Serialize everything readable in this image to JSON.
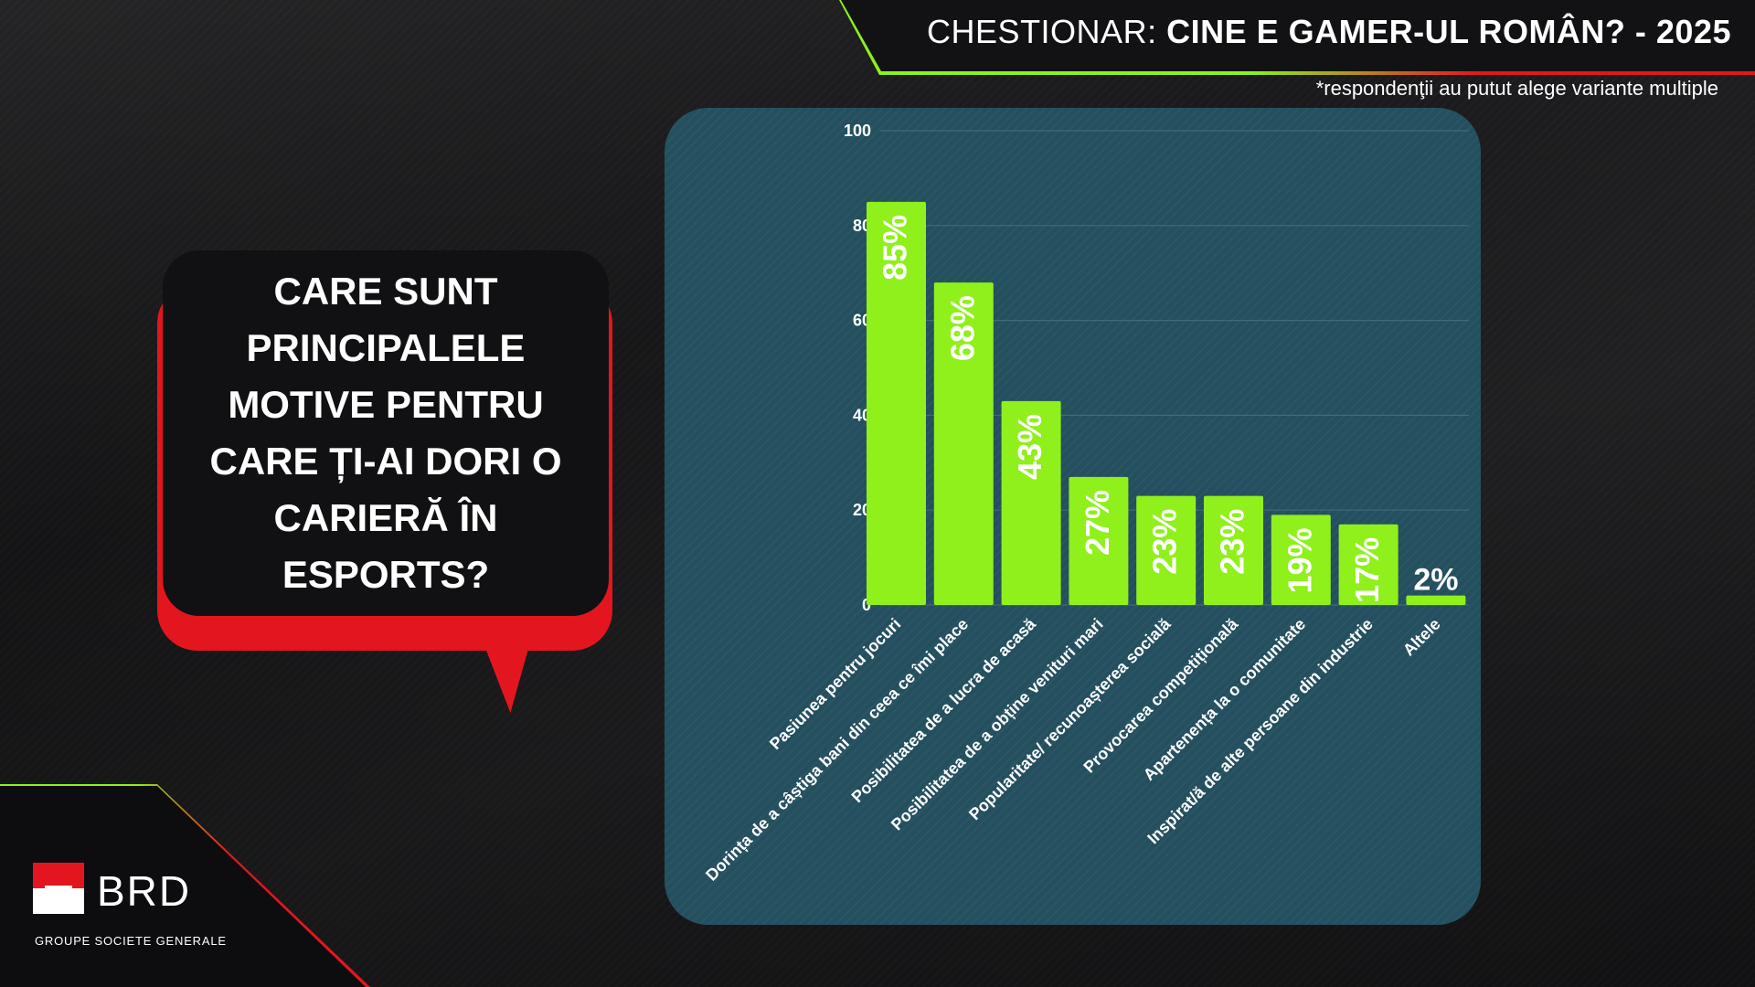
{
  "header": {
    "title_prefix": "CHESTIONAR:",
    "title_main": "CINE E GAMER-UL ROMÂN? - 2025",
    "footnote": "*respondenţii au putut alege variante multiple"
  },
  "question": {
    "text": "CARE SUNT\nPRINCIPALELE\nMOTIVE PENTRU\nCARE ȚI-AI DORI O\nCARIERĂ ÎN\nESPORTS?"
  },
  "brand": {
    "name": "BRD",
    "subtitle": "GROUPE SOCIETE GENERALE"
  },
  "colors": {
    "bar": "#8ff01b",
    "panel": "#234f5e",
    "accent_red": "#e3161f",
    "accent_green": "#8cf21a"
  },
  "chart_data": {
    "type": "bar",
    "categories": [
      "Pasiunea pentru jocuri",
      "Dorința de a câștiga bani din ceea ce îmi place",
      "Posibilitatea de a lucra de acasă",
      "Posibilitatea de a obține venituri mari",
      "Popularitate/ recunoașterea socială",
      "Provocarea competițională",
      "Apartenența la o comunitate",
      "Inspirat/ă de alte persoane din industrie",
      "Altele"
    ],
    "values": [
      85,
      68,
      43,
      27,
      23,
      23,
      19,
      17,
      2
    ],
    "value_labels": [
      "85%",
      "68%",
      "43%",
      "27%",
      "23%",
      "23%",
      "19%",
      "17%",
      "2%"
    ],
    "ylim": [
      0,
      100
    ],
    "yticks": [
      "0",
      "20",
      "40",
      "60",
      "80",
      "100"
    ],
    "grid": true,
    "legend": "none"
  }
}
